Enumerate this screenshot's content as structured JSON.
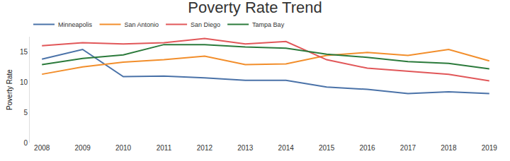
{
  "chart_data": {
    "type": "line",
    "title": "Poverty Rate Trend",
    "y_label": "Poverty Rate",
    "categories": [
      "2008",
      "2009",
      "2010",
      "2011",
      "2012",
      "2013",
      "2014",
      "2015",
      "2016",
      "2017",
      "2018",
      "2019"
    ],
    "series": [
      {
        "name": "Minneapolis",
        "color": "#4a72a8",
        "values": [
          13.8,
          15.4,
          10.9,
          11.0,
          10.7,
          10.3,
          10.3,
          9.2,
          8.8,
          8.1,
          8.4,
          8.1
        ]
      },
      {
        "name": "San Antonio",
        "color": "#f28e2b",
        "values": [
          11.3,
          12.5,
          13.3,
          13.7,
          14.3,
          12.9,
          13.0,
          14.4,
          14.9,
          14.4,
          15.4,
          13.5
        ]
      },
      {
        "name": "San Diego",
        "color": "#e15759",
        "values": [
          16.0,
          16.5,
          16.3,
          16.5,
          17.2,
          16.3,
          16.7,
          13.7,
          12.3,
          11.8,
          11.3,
          10.2
        ]
      },
      {
        "name": "Tampa Bay",
        "color": "#2b7a3b",
        "values": [
          12.9,
          13.9,
          14.5,
          16.2,
          16.2,
          15.8,
          15.6,
          14.6,
          14.1,
          13.4,
          13.1,
          12.2
        ]
      }
    ],
    "ylim": [
      0,
      17.5
    ],
    "yticks": [
      0,
      5,
      10,
      15
    ],
    "grid": false,
    "legend": "top-left"
  }
}
